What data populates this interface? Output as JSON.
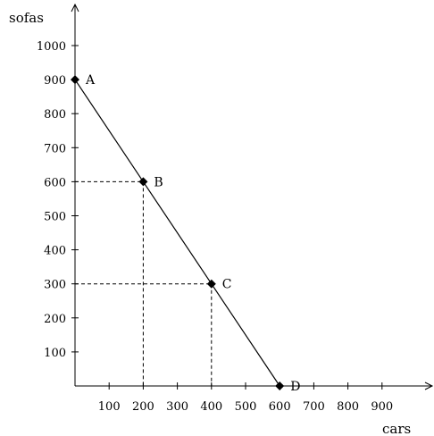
{
  "chart_data": {
    "type": "line",
    "xlabel": "cars",
    "ylabel": "sofas",
    "xlim": [
      0,
      1000
    ],
    "ylim": [
      0,
      1000
    ],
    "x_ticks": [
      100,
      200,
      300,
      400,
      500,
      600,
      700,
      800,
      900
    ],
    "y_ticks": [
      100,
      200,
      300,
      400,
      500,
      600,
      700,
      800,
      900,
      1000
    ],
    "grid": false,
    "series": [
      {
        "points": [
          {
            "label": "A",
            "x": 0,
            "y": 900
          },
          {
            "label": "B",
            "x": 200,
            "y": 600
          },
          {
            "label": "C",
            "x": 400,
            "y": 300
          },
          {
            "label": "D",
            "x": 600,
            "y": 0
          }
        ]
      }
    ],
    "guide_lines": [
      {
        "point": "B",
        "x": 200,
        "y": 600,
        "style": "dashed"
      },
      {
        "point": "C",
        "x": 400,
        "y": 300,
        "style": "dashed"
      }
    ],
    "colors": {
      "line": "#000000",
      "marker": "#000000",
      "axis": "#000000"
    }
  }
}
